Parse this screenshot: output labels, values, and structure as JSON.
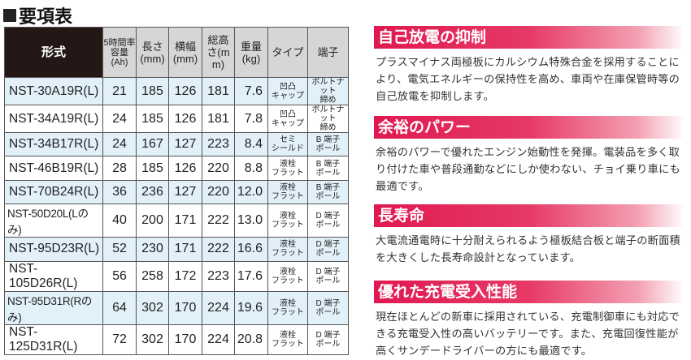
{
  "title": "要項表",
  "table": {
    "headers": [
      "形式",
      "5時間率容量(Ah)",
      "長さ(mm)",
      "横幅(mm)",
      "総高さ(mm)",
      "重量(kg)",
      "タイプ",
      "端子"
    ],
    "header_lines": [
      [
        "形式"
      ],
      [
        "5時間率",
        "容量",
        "(Ah)"
      ],
      [
        "長さ",
        "(mm)"
      ],
      [
        "横幅",
        "(mm)"
      ],
      [
        "総高さ",
        "(mm)"
      ],
      [
        "重量",
        "(kg)"
      ],
      [
        "タイプ"
      ],
      [
        "端子"
      ]
    ],
    "rows": [
      {
        "model": "NST-30A19R(L)",
        "ah": "21",
        "length": "185",
        "width": "126",
        "height": "181",
        "weight": "7.6",
        "type": [
          "凹凸",
          "キャップ"
        ],
        "terminal": [
          "ボルトナット",
          "締め"
        ]
      },
      {
        "model": "NST-34A19R(L)",
        "ah": "24",
        "length": "185",
        "width": "126",
        "height": "181",
        "weight": "7.8",
        "type": [
          "凹凸",
          "キャップ"
        ],
        "terminal": [
          "ボルトナット",
          "締め"
        ]
      },
      {
        "model": "NST-34B17R(L)",
        "ah": "24",
        "length": "167",
        "width": "127",
        "height": "223",
        "weight": "8.4",
        "type": [
          "セミ",
          "シールド"
        ],
        "terminal": [
          "B 端子",
          "ポール"
        ]
      },
      {
        "model": "NST-46B19R(L)",
        "ah": "28",
        "length": "185",
        "width": "126",
        "height": "220",
        "weight": "8.8",
        "type": [
          "液栓",
          "フラット"
        ],
        "terminal": [
          "B 端子",
          "ポール"
        ]
      },
      {
        "model": "NST-70B24R(L)",
        "ah": "36",
        "length": "236",
        "width": "127",
        "height": "220",
        "weight": "12.0",
        "type": [
          "液栓",
          "フラット"
        ],
        "terminal": [
          "B 端子",
          "ポール"
        ]
      },
      {
        "model": "NST-50D20L(Lのみ)",
        "ah": "40",
        "length": "200",
        "width": "171",
        "height": "222",
        "weight": "13.0",
        "type": [
          "液栓",
          "フラット"
        ],
        "terminal": [
          "D 端子",
          "ポール"
        ]
      },
      {
        "model": "NST-95D23R(L)",
        "ah": "52",
        "length": "230",
        "width": "171",
        "height": "222",
        "weight": "16.6",
        "type": [
          "液栓",
          "フラット"
        ],
        "terminal": [
          "D 端子",
          "ポール"
        ]
      },
      {
        "model": "NST-105D26R(L)",
        "ah": "56",
        "length": "258",
        "width": "172",
        "height": "223",
        "weight": "17.6",
        "type": [
          "液栓",
          "フラット"
        ],
        "terminal": [
          "D 端子",
          "ポール"
        ]
      },
      {
        "model": "NST-95D31R(Rのみ)",
        "ah": "64",
        "length": "302",
        "width": "170",
        "height": "224",
        "weight": "19.6",
        "type": [
          "液栓",
          "フラット"
        ],
        "terminal": [
          "D 端子",
          "ポール"
        ]
      },
      {
        "model": "NST-125D31R(L)",
        "ah": "72",
        "length": "302",
        "width": "170",
        "height": "224",
        "weight": "20.8",
        "type": [
          "液栓",
          "フラット"
        ],
        "terminal": [
          "D 端子",
          "ポール"
        ]
      }
    ]
  },
  "features": [
    {
      "heading": "自己放電の抑制",
      "text": "プラスマイナス両極板にカルシウム特殊合金を採用することにより、電気エネルギーの保持性を高め、車両や在庫保管時等の自己放電を抑制します。"
    },
    {
      "heading": "余裕のパワー",
      "text": "余裕のパワーで優れたエンジン始動性を発揮。電装品を多く取り付けた車や普段通勤などにしか使わない、チョイ乗り車にも最適です。"
    },
    {
      "heading": "長寿命",
      "text": "大電流通電時に十分耐えられるよう極板結合板と端子の断面積を大きくした長寿命設計となっています。"
    },
    {
      "heading": "優れた充電受入性能",
      "text": "現在ほとんどの新車に採用されている、充電制御車にも対応できる充電受入性の高いバッテリーです。また、充電回復性能が高くサンデードライバーの方にも最適です。"
    }
  ],
  "colors": {
    "accent": "#e0184f",
    "row_alt": "#e1f0f9",
    "header_dark": "#231815"
  }
}
